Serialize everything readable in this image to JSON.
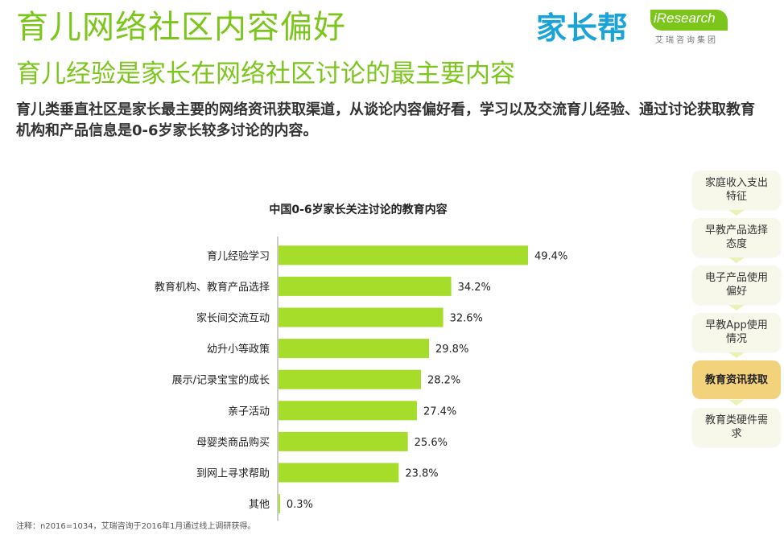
{
  "header": {
    "title": "育儿网络社区内容偏好",
    "subtitle": "育儿经验是家长在网络社区讨论的最主要内容",
    "description": "育儿类垂直社区是家长最主要的网络资讯获取渠道，从谈论内容偏好看，学习以及交流育儿经验、通过讨论获取教育机构和产品信息是0-6岁家长较多讨论的内容。"
  },
  "logos": {
    "jiazhangbang": "家长帮",
    "iresearch": "iResearch",
    "iresearch_cn": "艾瑞咨询集团"
  },
  "chart_data": {
    "type": "bar",
    "orientation": "horizontal",
    "title": "中国0-6岁家长关注讨论的教育内容",
    "categories": [
      "育儿经验学习",
      "教育机构、教育产品选择",
      "家长间交流互动",
      "幼升小等政策",
      "展示/记录宝宝的成长",
      "亲子活动",
      "母婴类商品购买",
      "到网上寻求帮助",
      "其他"
    ],
    "values": [
      49.4,
      34.2,
      32.6,
      29.8,
      28.2,
      27.4,
      25.6,
      23.8,
      0.3
    ],
    "labels": [
      "49.4%",
      "34.2%",
      "32.6%",
      "29.8%",
      "28.2%",
      "27.4%",
      "25.6%",
      "23.8%",
      "0.3%"
    ],
    "xlim": [
      0,
      60
    ],
    "unit": "%",
    "bar_color": "#a6dc2a",
    "grid": false,
    "legend": false
  },
  "nav": {
    "items": [
      {
        "label": "家庭收入支出特征",
        "active": false
      },
      {
        "label": "早教产品选择态度",
        "active": false
      },
      {
        "label": "电子产品使用偏好",
        "active": false
      },
      {
        "label": "早教App使用情况",
        "active": false
      },
      {
        "label": "教育资讯获取",
        "active": true
      },
      {
        "label": "教育类硬件需求",
        "active": false
      }
    ],
    "active_color": "#f2d27a",
    "inactive_color": "#f7f7ea"
  },
  "footnote": "注释：n2016=1034，艾瑞咨询于2016年1月通过线上调研获得。",
  "colors": {
    "brand_green": "#7cc61c",
    "jzb_blue": "#1aa3d6",
    "jzb_green": "#7cc61c"
  }
}
